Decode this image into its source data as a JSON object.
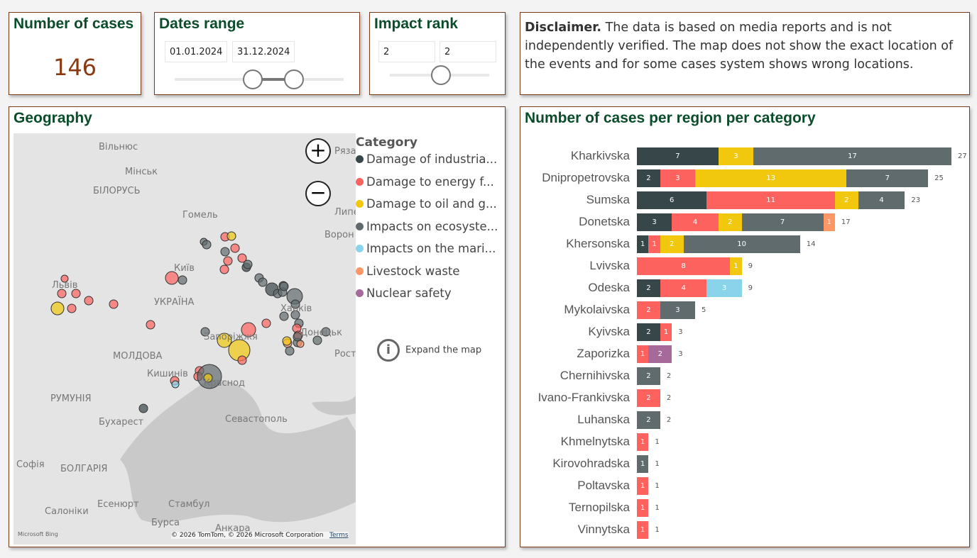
{
  "kpi": {
    "title": "Number of cases",
    "value": "146"
  },
  "dates": {
    "title": "Dates range",
    "start": "01.01.2024",
    "end": "31.12.2024"
  },
  "impact": {
    "title": "Impact rank",
    "min": "2",
    "max": "2"
  },
  "disclaimer": {
    "bold": "Disclaimer.",
    "text": " The data is based on media reports and is not independently verified. The map does not show the exact location of the events and for some cases system shows wrong locations."
  },
  "geo": {
    "title": "Geography",
    "legend_title": "Category",
    "expand": "Expand the map",
    "attribution": "© 2026 TomTom, © 2026 Microsoft Corporation",
    "terms": "Terms",
    "bing": "Microsoft Bing",
    "labels": [
      "Вільнюс",
      "Мінськ",
      "БІЛОРУСЬ",
      "Гомель",
      "Рязан",
      "Липец",
      "Ворон",
      "Київ",
      "Львів",
      "УКРАЇНА",
      "Харків",
      "Запоріжжя",
      "Донецьк",
      "МОЛДОВА",
      "Рост",
      "Кишинів",
      "РУМУНІЯ",
      "Краснод",
      "Бухарест",
      "Севастополь",
      "Софія",
      "БОЛГАРІЯ",
      "Есенюрт",
      "Стамбул",
      "Салоніки",
      "Бурса",
      "Анкара"
    ]
  },
  "categories": [
    {
      "name": "Damage of industria...",
      "color": "#374649"
    },
    {
      "name": "Damage to energy f...",
      "color": "#FD625E"
    },
    {
      "name": "Damage to oil and g...",
      "color": "#F2C80F"
    },
    {
      "name": "Impacts on ecosyste...",
      "color": "#5F6B6D"
    },
    {
      "name": "Impacts on the mari...",
      "color": "#8AD4EB"
    },
    {
      "name": "Livestock waste",
      "color": "#FE9666"
    },
    {
      "name": "Nuclear safety",
      "color": "#A66999"
    }
  ],
  "chart_data": {
    "type": "bar",
    "orientation": "horizontal",
    "stacked": true,
    "title": "Number of cases per region per category",
    "categories": [
      "Kharkivska",
      "Dnipropetrovska",
      "Sumska",
      "Donetska",
      "Khersonska",
      "Lvivska",
      "Odeska",
      "Mykolaivska",
      "Kyivska",
      "Zaporizka",
      "Chernihivska",
      "Ivano-Frankivska",
      "Luhanska",
      "Khmelnytska",
      "Kirovohradska",
      "Poltavska",
      "Ternopilska",
      "Vinnytska"
    ],
    "series": [
      {
        "name": "Damage of industria...",
        "values": [
          7,
          2,
          6,
          3,
          1,
          0,
          2,
          0,
          2,
          0,
          0,
          0,
          0,
          0,
          0,
          0,
          0,
          0
        ]
      },
      {
        "name": "Damage to energy f...",
        "values": [
          0,
          3,
          11,
          4,
          1,
          8,
          4,
          2,
          1,
          1,
          0,
          2,
          0,
          1,
          0,
          1,
          1,
          1
        ]
      },
      {
        "name": "Damage to oil and g...",
        "values": [
          3,
          13,
          2,
          2,
          2,
          1,
          0,
          0,
          0,
          0,
          0,
          0,
          0,
          0,
          0,
          0,
          0,
          0
        ]
      },
      {
        "name": "Impacts on ecosyste...",
        "values": [
          17,
          7,
          4,
          7,
          10,
          0,
          0,
          3,
          0,
          0,
          2,
          0,
          2,
          0,
          1,
          0,
          0,
          0
        ]
      },
      {
        "name": "Impacts on the mari...",
        "values": [
          0,
          0,
          0,
          0,
          0,
          0,
          3,
          0,
          0,
          0,
          0,
          0,
          0,
          0,
          0,
          0,
          0,
          0
        ]
      },
      {
        "name": "Livestock waste",
        "values": [
          0,
          0,
          0,
          1,
          0,
          0,
          0,
          0,
          0,
          0,
          0,
          0,
          0,
          0,
          0,
          0,
          0,
          0
        ]
      },
      {
        "name": "Nuclear safety",
        "values": [
          0,
          0,
          0,
          0,
          0,
          0,
          0,
          0,
          0,
          2,
          0,
          0,
          0,
          0,
          0,
          0,
          0,
          0
        ]
      }
    ],
    "totals": [
      27,
      25,
      23,
      17,
      14,
      9,
      9,
      5,
      3,
      3,
      2,
      2,
      2,
      1,
      1,
      1,
      1,
      1
    ],
    "xlim": [
      0,
      27
    ],
    "grid": false,
    "data_labels": true
  }
}
